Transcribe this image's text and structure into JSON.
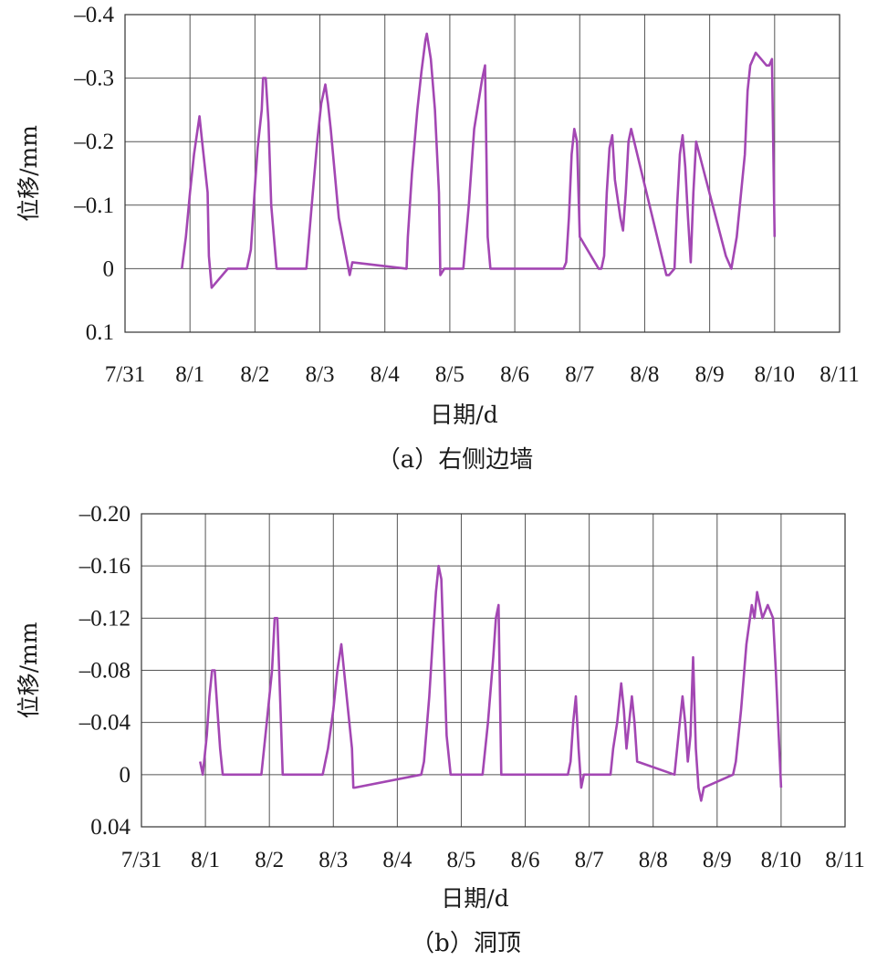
{
  "chart_data": [
    {
      "type": "line",
      "caption": "（a）右侧边墙",
      "xlabel": "日期/d",
      "ylabel": "位移/mm",
      "x_ticks": [
        "7/31",
        "8/1",
        "8/2",
        "8/3",
        "8/4",
        "8/5",
        "8/6",
        "8/7",
        "8/8",
        "8/9",
        "8/10",
        "8/11"
      ],
      "y_ticks": [
        "–0.4",
        "–0.3",
        "–0.2",
        "–0.1",
        "0",
        "0.1"
      ],
      "ylim": [
        0.1,
        -0.4
      ],
      "y_inverted": true,
      "grid": true,
      "color": "#a347b3",
      "series": [
        {
          "x": [
            "7/31 21:00",
            "7/31 22:30",
            "8/1 00:00",
            "8/1 01:30",
            "8/1 02:30",
            "8/1 03:30",
            "8/1 04:30",
            "8/1 05:30",
            "8/1 06:30",
            "8/1 07:00",
            "8/1 08:00",
            "8/1 14:00",
            "8/1 21:00",
            "8/1 22:30",
            "8/2 00:00",
            "8/2 01:00",
            "8/2 02:30",
            "8/2 03:00",
            "8/2 04:00",
            "8/2 05:00",
            "8/2 06:00",
            "8/2 08:00",
            "8/2 14:00",
            "8/2 19:00",
            "8/2 21:00",
            "8/2 23:00",
            "8/3 00:30",
            "8/3 02:00",
            "8/3 03:00",
            "8/3 04:00",
            "8/3 07:00",
            "8/3 11:00",
            "8/3 12:00",
            "8/4 08:00",
            "8/4 08:30",
            "8/4 10:00",
            "8/4 12:00",
            "8/4 13:30",
            "8/4 15:00",
            "8/4 15:30",
            "8/4 17:00",
            "8/4 18:30",
            "8/4 20:00",
            "8/4 20:30",
            "8/4 22:00",
            "8/5 00:00",
            "8/5 05:00",
            "8/5 07:00",
            "8/5 09:00",
            "8/5 12:00",
            "8/5 13:00",
            "8/5 14:00",
            "8/5 15:00",
            "8/5 16:00",
            "8/6 12:00",
            "8/6 18:00",
            "8/6 19:00",
            "8/6 20:00",
            "8/6 21:00",
            "8/6 22:00",
            "8/6 23:00",
            "8/7 00:00",
            "8/7 07:00",
            "8/7 08:00",
            "8/7 09:00",
            "8/7 10:00",
            "8/7 11:00",
            "8/7 12:00",
            "8/7 13:00",
            "8/7 15:00",
            "8/7 16:00",
            "8/7 17:00",
            "8/7 18:00",
            "8/7 19:00",
            "8/8 08:00",
            "8/8 09:00",
            "8/8 11:00",
            "8/8 12:00",
            "8/8 13:00",
            "8/8 14:00",
            "8/8 15:00",
            "8/8 16:00",
            "8/8 17:00",
            "8/8 18:00",
            "8/8 19:00",
            "8/9 06:00",
            "8/9 08:00",
            "8/9 10:00",
            "8/9 13:00",
            "8/9 14:00",
            "8/9 15:00",
            "8/9 17:00",
            "8/9 19:00",
            "8/9 21:00",
            "8/9 22:00",
            "8/9 23:00",
            "8/10 00:00"
          ],
          "y": [
            0,
            -0.05,
            -0.12,
            -0.18,
            -0.21,
            -0.24,
            -0.2,
            -0.16,
            -0.12,
            -0.02,
            0.03,
            0,
            0,
            -0.03,
            -0.13,
            -0.19,
            -0.25,
            -0.3,
            -0.3,
            -0.23,
            -0.1,
            0,
            0,
            0,
            -0.1,
            -0.2,
            -0.26,
            -0.29,
            -0.26,
            -0.22,
            -0.08,
            0.01,
            -0.01,
            0,
            -0.05,
            -0.15,
            -0.25,
            -0.31,
            -0.36,
            -0.37,
            -0.33,
            -0.25,
            -0.12,
            0.01,
            0,
            0,
            0,
            -0.1,
            -0.22,
            -0.3,
            -0.32,
            -0.05,
            0,
            0,
            0,
            0,
            -0.01,
            -0.08,
            -0.18,
            -0.22,
            -0.2,
            -0.05,
            0,
            0,
            -0.02,
            -0.12,
            -0.19,
            -0.21,
            -0.14,
            -0.08,
            -0.06,
            -0.12,
            -0.2,
            -0.22,
            0.01,
            0.01,
            0,
            -0.1,
            -0.18,
            -0.21,
            -0.16,
            -0.08,
            -0.01,
            -0.12,
            -0.2,
            -0.02,
            0,
            -0.05,
            -0.18,
            -0.28,
            -0.32,
            -0.34,
            -0.33,
            -0.32,
            -0.32,
            -0.33,
            -0.05
          ]
        }
      ]
    },
    {
      "type": "line",
      "caption": "（b）洞顶",
      "xlabel": "日期/d",
      "ylabel": "位移/mm",
      "x_ticks": [
        "7/31",
        "8/1",
        "8/2",
        "8/3",
        "8/4",
        "8/5",
        "8/6",
        "8/7",
        "8/8",
        "8/9",
        "8/10",
        "8/11"
      ],
      "y_ticks": [
        "–0.20",
        "–0.16",
        "–0.12",
        "–0.08",
        "–0.04",
        "0",
        "0.04"
      ],
      "ylim": [
        0.04,
        -0.2
      ],
      "y_inverted": true,
      "grid": true,
      "color": "#a347b3",
      "series": [
        {
          "x": [
            "7/31 22:00",
            "7/31 23:00",
            "8/1 00:30",
            "8/1 01:30",
            "8/1 02:30",
            "8/1 03:30",
            "8/1 04:30",
            "8/1 05:30",
            "8/1 06:30",
            "8/1 08:00",
            "8/1 15:00",
            "8/1 21:00",
            "8/1 23:00",
            "8/2 01:00",
            "8/2 02:00",
            "8/2 03:00",
            "8/2 04:00",
            "8/2 05:00",
            "8/2 07:00",
            "8/2 15:00",
            "8/2 20:00",
            "8/2 22:00",
            "8/3 00:00",
            "8/3 01:30",
            "8/3 03:00",
            "8/3 04:30",
            "8/3 06:00",
            "8/3 07:00",
            "8/3 07:30",
            "8/3 08:00",
            "8/4 09:00",
            "8/4 10:00",
            "8/4 12:00",
            "8/4 13:30",
            "8/4 14:30",
            "8/4 15:30",
            "8/4 16:30",
            "8/4 17:30",
            "8/4 18:30",
            "8/4 20:00",
            "8/4 22:00",
            "8/5 00:00",
            "8/5 08:00",
            "8/5 10:00",
            "8/5 12:00",
            "8/5 13:00",
            "8/5 14:00",
            "8/5 15:00",
            "8/6 00:00",
            "8/6 16:00",
            "8/6 17:00",
            "8/6 18:00",
            "8/6 19:00",
            "8/6 20:00",
            "8/6 21:00",
            "8/6 22:00",
            "8/7 08:00",
            "8/7 09:00",
            "8/7 10:30",
            "8/7 12:00",
            "8/7 13:00",
            "8/7 14:00",
            "8/7 15:00",
            "8/7 16:00",
            "8/7 17:00",
            "8/7 18:00",
            "8/8 08:00",
            "8/8 09:00",
            "8/8 10:00",
            "8/8 11:00",
            "8/8 12:00",
            "8/8 13:00",
            "8/8 14:00",
            "8/8 15:00",
            "8/8 16:00",
            "8/8 17:00",
            "8/8 18:00",
            "8/8 19:00",
            "8/9 06:00",
            "8/9 07:00",
            "8/9 09:00",
            "8/9 11:00",
            "8/9 13:00",
            "8/9 14:00",
            "8/9 15:00",
            "8/9 17:00",
            "8/9 19:00",
            "8/9 21:00",
            "8/9 22:00",
            "8/10 00:00"
          ],
          "y": [
            -0.01,
            0,
            -0.03,
            -0.06,
            -0.08,
            -0.08,
            -0.05,
            -0.02,
            0,
            0,
            0,
            0,
            -0.04,
            -0.08,
            -0.12,
            -0.12,
            -0.06,
            0,
            0,
            0,
            0,
            -0.02,
            -0.05,
            -0.08,
            -0.1,
            -0.07,
            -0.04,
            -0.02,
            0.01,
            0.01,
            0,
            -0.01,
            -0.06,
            -0.11,
            -0.14,
            -0.16,
            -0.15,
            -0.09,
            -0.03,
            0,
            0,
            0,
            0,
            -0.04,
            -0.09,
            -0.12,
            -0.13,
            0,
            0,
            0,
            -0.01,
            -0.04,
            -0.06,
            -0.02,
            0.01,
            0,
            0,
            -0.02,
            -0.04,
            -0.07,
            -0.05,
            -0.02,
            -0.04,
            -0.06,
            -0.04,
            -0.01,
            0,
            -0.02,
            -0.04,
            -0.06,
            -0.04,
            -0.01,
            -0.03,
            -0.09,
            -0.02,
            0.01,
            0.02,
            0.01,
            0,
            -0.01,
            -0.05,
            -0.1,
            -0.13,
            -0.12,
            -0.14,
            -0.12,
            -0.13,
            -0.12,
            -0.08,
            0.01
          ]
        }
      ]
    }
  ]
}
